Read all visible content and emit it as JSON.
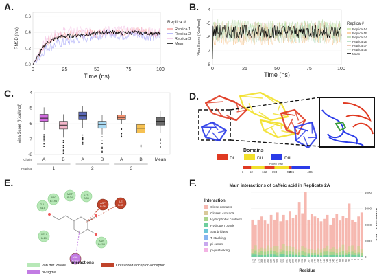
{
  "panels": {
    "A": "A.",
    "B": "B.",
    "C": "C.",
    "D": "D.",
    "E": "E.",
    "F": "F."
  },
  "chart_data": [
    {
      "id": "A",
      "type": "line",
      "xlabel": "Time (ns)",
      "ylabel": "RMSD (nm)",
      "xlim": [
        0,
        100
      ],
      "ylim": [
        0,
        0.65
      ],
      "xticks": [
        0,
        25,
        50,
        75,
        100
      ],
      "yticks": [
        0.0,
        0.2,
        0.4,
        0.6
      ],
      "legend_title": "Replica #",
      "legend_position": "right",
      "series": [
        {
          "name": "Replica-1",
          "color": "#f8a5a5",
          "base": [
            0,
            0.28,
            0.36,
            0.37,
            0.38,
            0.39,
            0.42,
            0.4,
            0.41,
            0.4,
            0.39
          ]
        },
        {
          "name": "Replica-2",
          "color": "#a5a5f8",
          "base": [
            0,
            0.2,
            0.26,
            0.3,
            0.33,
            0.37,
            0.38,
            0.36,
            0.38,
            0.36,
            0.34
          ]
        },
        {
          "name": "Replica-3",
          "color": "#f4c7e8",
          "base": [
            0,
            0.3,
            0.4,
            0.42,
            0.41,
            0.42,
            0.43,
            0.42,
            0.42,
            0.41,
            0.4
          ]
        },
        {
          "name": "Mean",
          "color": "#000000",
          "base": [
            0,
            0.26,
            0.34,
            0.36,
            0.37,
            0.39,
            0.41,
            0.39,
            0.4,
            0.39,
            0.38
          ]
        }
      ]
    },
    {
      "id": "B",
      "type": "line",
      "xlabel": "Time (ns)",
      "ylabel": "Vina Score (Kcal/mol)",
      "xlim": [
        0,
        100
      ],
      "ylim": [
        -8,
        -4
      ],
      "xticks": [
        0,
        25,
        50,
        75,
        100
      ],
      "yticks": [
        -4,
        -5,
        -6,
        -7,
        -8
      ],
      "legend_title": "Replica #",
      "legend_position": "right",
      "series": [
        {
          "name": "Replica-1A",
          "color": "#c8e6a0",
          "mean": -5.5
        },
        {
          "name": "Replica-1B",
          "color": "#f9c38b",
          "mean": -5.9
        },
        {
          "name": "Replica-2A",
          "color": "#b6d7a8",
          "mean": -5.4
        },
        {
          "name": "Replica-2B",
          "color": "#a8d8b9",
          "mean": -5.7
        },
        {
          "name": "Replica-3A",
          "color": "#e6b89c",
          "mean": -5.6
        },
        {
          "name": "Replica-3B",
          "color": "#d9ead3",
          "mean": -5.8
        },
        {
          "name": "Mean",
          "color": "#000000",
          "mean": -5.6
        }
      ]
    },
    {
      "id": "C",
      "type": "box",
      "ylabel": "Vina Score (Kcal/mol)",
      "ylim": [
        -8,
        -4
      ],
      "yticks": [
        -4,
        -5,
        -6,
        -7,
        -8
      ],
      "row_labels": {
        "chain": "Chain",
        "replica": "Replica"
      },
      "boxes": [
        {
          "chain": "A",
          "replica": "1",
          "color": "#d36be0",
          "q1": -5.85,
          "median": -5.65,
          "q3": -5.4,
          "lo": -6.4,
          "hi": -4.95
        },
        {
          "chain": "B",
          "replica": "1",
          "color": "#f4b6c9",
          "q1": -6.35,
          "median": -6.1,
          "q3": -5.85,
          "lo": -6.9,
          "hi": -5.4
        },
        {
          "chain": "A",
          "replica": "2",
          "color": "#5a68b8",
          "q1": -5.75,
          "median": -5.5,
          "q3": -5.25,
          "lo": -6.3,
          "hi": -4.85
        },
        {
          "chain": "B",
          "replica": "2",
          "color": "#a9d9f2",
          "q1": -6.3,
          "median": -6.05,
          "q3": -5.85,
          "lo": -6.7,
          "hi": -5.45
        },
        {
          "chain": "A",
          "replica": "3",
          "color": "#ef8f6e",
          "q1": -5.75,
          "median": -5.6,
          "q3": -5.45,
          "lo": -6.0,
          "hi": -5.2
        },
        {
          "chain": "B",
          "replica": "3",
          "color": "#f6c152",
          "q1": -6.6,
          "median": -6.3,
          "q3": -6.05,
          "lo": -7.1,
          "hi": -5.6
        },
        {
          "chain": "",
          "replica": "Mean",
          "color": "#6a6a6a",
          "q1": -6.1,
          "median": -5.85,
          "q3": -5.6,
          "lo": -6.6,
          "hi": -5.15
        }
      ]
    },
    {
      "id": "F",
      "type": "bar",
      "title": "Main interactions of caffeic acid in Replicate 2A",
      "xlabel": "Residue",
      "ylabel": "Interactions count",
      "ylim": [
        0,
        4000
      ],
      "yticks": [
        0,
        1000,
        2000,
        3000,
        4000
      ],
      "legend_title": "Interaction",
      "legend_position": "left",
      "legend": [
        {
          "name": "Close contacts",
          "color": "#f6b8b0"
        },
        {
          "name": "Closest contacts",
          "color": "#d9c99a"
        },
        {
          "name": "Hydrophobic contacts",
          "color": "#a9d48c"
        },
        {
          "name": "Hydrogen bonds",
          "color": "#6fcf9e"
        },
        {
          "name": "Salt bridges",
          "color": "#6cc6d6"
        },
        {
          "name": "T-stacking",
          "color": "#87b4f0"
        },
        {
          "name": "pi-cation",
          "color": "#c8a8ee"
        },
        {
          "name": "pi-pi stacking",
          "color": "#f3b3e4"
        }
      ],
      "categories": [
        "376",
        "373",
        "372",
        "368",
        "366",
        "365",
        "325",
        "322",
        "308",
        "305",
        "302",
        "301",
        "299",
        "298",
        "196",
        "195",
        "194",
        "193",
        "167",
        "150",
        "149",
        "148",
        "147",
        "146",
        "144",
        "143",
        "142",
        "141",
        "63",
        "62",
        "60",
        "30",
        "9",
        "8",
        "5",
        "3"
      ],
      "values": [
        2300,
        2000,
        2300,
        2500,
        2250,
        2050,
        2600,
        2300,
        2750,
        2200,
        2600,
        2250,
        2800,
        2400,
        2600,
        3400,
        2700,
        4000,
        2300,
        2650,
        2500,
        2400,
        2200,
        2350,
        2600,
        2000,
        2400,
        2650,
        2250,
        2550,
        2400,
        3300,
        2300,
        2150,
        2500,
        2750
      ]
    }
  ],
  "panelD": {
    "legend_title": "Domains",
    "domains": [
      {
        "name": "DI",
        "color": "#e03a22"
      },
      {
        "name": "DII",
        "color": "#f2e02a"
      },
      {
        "name": "DIII",
        "color": "#2a3be8"
      }
    ],
    "axis_title": "Protein chain",
    "ticks": [
      "1",
      "52",
      "132",
      "193",
      "280",
      "296",
      "406"
    ],
    "segments": [
      {
        "from": 1,
        "to": 52,
        "color": "#e03a22"
      },
      {
        "from": 52,
        "to": 132,
        "color": "#f2e02a"
      },
      {
        "from": 132,
        "to": 193,
        "color": "#e03a22"
      },
      {
        "from": 193,
        "to": 280,
        "color": "#f2e02a"
      },
      {
        "from": 280,
        "to": 296,
        "color": "#e03a22"
      },
      {
        "from": 296,
        "to": 406,
        "color": "#2a3be8"
      }
    ]
  },
  "panelE": {
    "legend_title": "Interactions",
    "legend": [
      {
        "name": "van der Waals",
        "color": "#b7e8b7"
      },
      {
        "name": "Unfavored acceptor-acceptor",
        "color": "#c0432a"
      },
      {
        "name": "pi-sigma",
        "color": "#c27ce3"
      }
    ],
    "residues": [
      {
        "label": "GLU\nB:15",
        "color": "#b7e8b7"
      },
      {
        "label": "ARG\nB:194",
        "color": "#b7e8b7"
      },
      {
        "label": "MET\nB:34",
        "color": "#b7e8b7"
      },
      {
        "label": "LYS\nB:35",
        "color": "#b7e8b7"
      },
      {
        "label": "ASP\nB:36",
        "color": "#c0432a"
      },
      {
        "label": "ILE\nB:37",
        "color": "#c0432a"
      },
      {
        "label": "LEU\nB:19",
        "color": "#b7e8b7"
      },
      {
        "label": "ASN\nB:299",
        "color": "#b7e8b7"
      },
      {
        "label": "VAL\nB:301",
        "color": "#c27ce3"
      }
    ]
  }
}
